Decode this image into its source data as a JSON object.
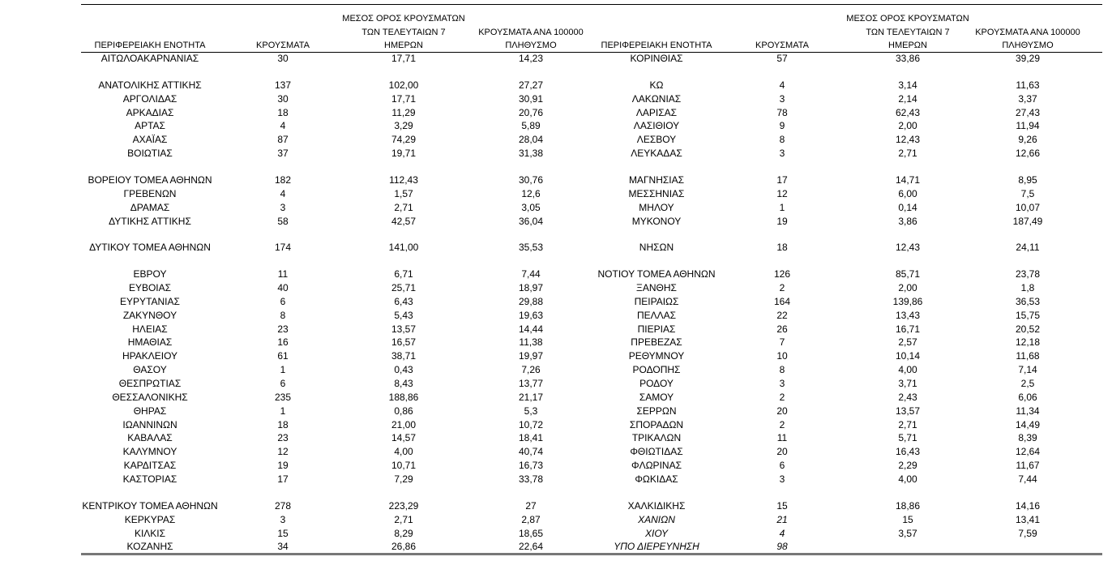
{
  "tables": [
    {
      "header": [
        [
          "ΠΕΡΙΦΕΡΕΙΑΚΗ ΕΝΟΤΗΤΑ"
        ],
        [
          "ΚΡΟΥΣΜΑΤΑ"
        ],
        [
          "ΜΕΣΟΣ ΟΡΟΣ ΚΡΟΥΣΜΑΤΩΝ",
          "ΤΩΝ ΤΕΛΕΥΤΑΙΩΝ 7",
          "ΗΜΕΡΩΝ"
        ],
        [
          "ΚΡΟΥΣΜΑΤΑ ΑΝΑ 100000",
          "ΠΛΗΘΥΣΜΟ"
        ]
      ],
      "rows": [
        [
          "ΑΙΤΩΛΟΑΚΑΡΝΑΝΙΑΣ",
          "30",
          "17,71",
          "14,23"
        ],
        [
          "ΑΝΑΤΟΛΙΚΗΣ ΑΤΤΙΚΗΣ",
          "137",
          "102,00",
          "27,27"
        ],
        [
          "ΑΡΓΟΛΙΔΑΣ",
          "30",
          "17,71",
          "30,91"
        ],
        [
          "ΑΡΚΑΔΙΑΣ",
          "18",
          "11,29",
          "20,76"
        ],
        [
          "ΑΡΤΑΣ",
          "4",
          "3,29",
          "5,89"
        ],
        [
          "ΑΧΑΪΑΣ",
          "87",
          "74,29",
          "28,04"
        ],
        [
          "ΒΟΙΩΤΙΑΣ",
          "37",
          "19,71",
          "31,38"
        ],
        [
          "ΒΟΡΕΙΟΥ ΤΟΜΕΑ ΑΘΗΝΩΝ",
          "182",
          "112,43",
          "30,76"
        ],
        [
          "ΓΡΕΒΕΝΩΝ",
          "4",
          "1,57",
          "12,6"
        ],
        [
          "ΔΡΑΜΑΣ",
          "3",
          "2,71",
          "3,05"
        ],
        [
          "ΔΥΤΙΚΗΣ ΑΤΤΙΚΗΣ",
          "58",
          "42,57",
          "36,04"
        ],
        [
          "ΔΥΤΙΚΟΥ ΤΟΜΕΑ ΑΘΗΝΩΝ",
          "174",
          "141,00",
          "35,53"
        ],
        [
          "ΕΒΡΟΥ",
          "11",
          "6,71",
          "7,44"
        ],
        [
          "ΕΥΒΟΙΑΣ",
          "40",
          "25,71",
          "18,97"
        ],
        [
          "ΕΥΡΥΤΑΝΙΑΣ",
          "6",
          "6,43",
          "29,88"
        ],
        [
          "ΖΑΚΥΝΘΟΥ",
          "8",
          "5,43",
          "19,63"
        ],
        [
          "ΗΛΕΙΑΣ",
          "23",
          "13,57",
          "14,44"
        ],
        [
          "ΗΜΑΘΙΑΣ",
          "16",
          "16,57",
          "11,38"
        ],
        [
          "ΗΡΑΚΛΕΙΟΥ",
          "61",
          "38,71",
          "19,97"
        ],
        [
          "ΘΑΣΟΥ",
          "1",
          "0,43",
          "7,26"
        ],
        [
          "ΘΕΣΠΡΩΤΙΑΣ",
          "6",
          "8,43",
          "13,77"
        ],
        [
          "ΘΕΣΣΑΛΟΝΙΚΗΣ",
          "235",
          "188,86",
          "21,17"
        ],
        [
          "ΘΗΡΑΣ",
          "1",
          "0,86",
          "5,3"
        ],
        [
          "ΙΩΑΝΝΙΝΩΝ",
          "18",
          "21,00",
          "10,72"
        ],
        [
          "ΚΑΒΑΛΑΣ",
          "23",
          "14,57",
          "18,41"
        ],
        [
          "ΚΑΛΥΜΝΟΥ",
          "12",
          "4,00",
          "40,74"
        ],
        [
          "ΚΑΡΔΙΤΣΑΣ",
          "19",
          "10,71",
          "16,73"
        ],
        [
          "ΚΑΣΤΟΡΙΑΣ",
          "17",
          "7,29",
          "33,78"
        ],
        [
          "ΚΕΝΤΡΙΚΟΥ ΤΟΜΕΑ ΑΘΗΝΩΝ",
          "278",
          "223,29",
          "27"
        ],
        [
          "ΚΕΡΚΥΡΑΣ",
          "3",
          "2,71",
          "2,87"
        ],
        [
          "ΚΙΛΚΙΣ",
          "15",
          "8,29",
          "18,65"
        ],
        [
          "ΚΟΖΑΝΗΣ",
          "34",
          "26,86",
          "22,64"
        ]
      ]
    },
    {
      "header": [
        [
          "ΠΕΡΙΦΕΡΕΙΑΚΗ ΕΝΟΤΗΤΑ"
        ],
        [
          "ΚΡΟΥΣΜΑΤΑ"
        ],
        [
          "ΜΕΣΟΣ ΟΡΟΣ ΚΡΟΥΣΜΑΤΩΝ",
          "ΤΩΝ ΤΕΛΕΥΤΑΙΩΝ 7",
          "ΗΜΕΡΩΝ"
        ],
        [
          "ΚΡΟΥΣΜΑΤΑ ΑΝΑ 100000",
          "ΠΛΗΘΥΣΜΟ"
        ]
      ],
      "rows": [
        [
          "ΚΟΡΙΝΘΙΑΣ",
          "57",
          "33,86",
          "39,29"
        ],
        [
          "ΚΩ",
          "4",
          "3,14",
          "11,63"
        ],
        [
          "ΛΑΚΩΝΙΑΣ",
          "3",
          "2,14",
          "3,37"
        ],
        [
          "ΛΑΡΙΣΑΣ",
          "78",
          "62,43",
          "27,43"
        ],
        [
          "ΛΑΣΙΘΙΟΥ",
          "9",
          "2,00",
          "11,94"
        ],
        [
          "ΛΕΣΒΟΥ",
          "8",
          "12,43",
          "9,26"
        ],
        [
          "ΛΕΥΚΑΔΑΣ",
          "3",
          "2,71",
          "12,66"
        ],
        [
          "ΜΑΓΝΗΣΙΑΣ",
          "17",
          "14,71",
          "8,95"
        ],
        [
          "ΜΕΣΣΗΝΙΑΣ",
          "12",
          "6,00",
          "7,5"
        ],
        [
          "ΜΗΛΟΥ",
          "1",
          "0,14",
          "10,07"
        ],
        [
          "ΜΥΚΟΝΟΥ",
          "19",
          "3,86",
          "187,49"
        ],
        [
          "ΝΗΣΩΝ",
          "18",
          "12,43",
          "24,11"
        ],
        [
          "ΝΟΤΙΟΥ ΤΟΜΕΑ ΑΘΗΝΩΝ",
          "126",
          "85,71",
          "23,78"
        ],
        [
          "ΞΑΝΘΗΣ",
          "2",
          "2,00",
          "1,8"
        ],
        [
          "ΠΕΙΡΑΙΩΣ",
          "164",
          "139,86",
          "36,53"
        ],
        [
          "ΠΕΛΛΑΣ",
          "22",
          "13,43",
          "15,75"
        ],
        [
          "ΠΙΕΡΙΑΣ",
          "26",
          "16,71",
          "20,52"
        ],
        [
          "ΠΡΕΒΕΖΑΣ",
          "7",
          "2,57",
          "12,18"
        ],
        [
          "ΡΕΘΥΜΝΟΥ",
          "10",
          "10,14",
          "11,68"
        ],
        [
          "ΡΟΔΟΠΗΣ",
          "8",
          "4,00",
          "7,14"
        ],
        [
          "ΡΟΔΟΥ",
          "3",
          "3,71",
          "2,5"
        ],
        [
          "ΣΑΜΟΥ",
          "2",
          "2,43",
          "6,06"
        ],
        [
          "ΣΕΡΡΩΝ",
          "20",
          "13,57",
          "11,34"
        ],
        [
          "ΣΠΟΡΑΔΩΝ",
          "2",
          "2,71",
          "14,49"
        ],
        [
          "ΤΡΙΚΑΛΩΝ",
          "11",
          "5,71",
          "8,39"
        ],
        [
          "ΦΘΙΩΤΙΔΑΣ",
          "20",
          "16,43",
          "12,64"
        ],
        [
          "ΦΛΩΡΙΝΑΣ",
          "6",
          "2,29",
          "11,67"
        ],
        [
          "ΦΩΚΙΔΑΣ",
          "3",
          "4,00",
          "7,44"
        ],
        [
          "ΧΑΛΚΙΔΙΚΗΣ",
          "15",
          "18,86",
          "14,16"
        ],
        [
          "ΧΑΝΙΩΝ",
          "21",
          "15",
          "13,41"
        ],
        [
          "ΧΙΟΥ",
          "4",
          "3,57",
          "7,59"
        ],
        [
          "ΥΠΟ ΔΙΕΡΕΥΝΗΣΗ",
          "98"
        ]
      ]
    }
  ]
}
